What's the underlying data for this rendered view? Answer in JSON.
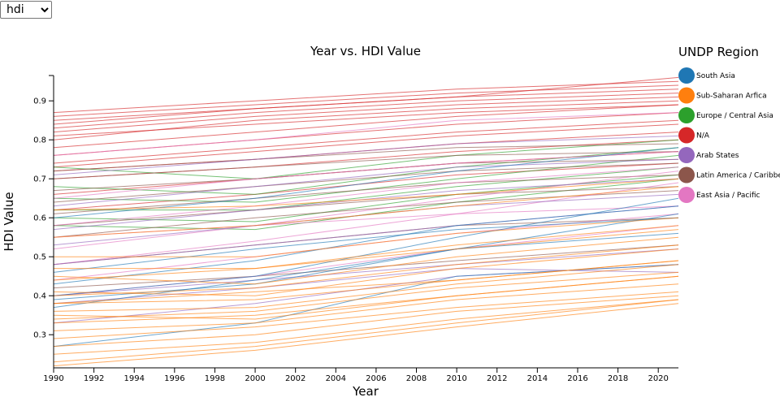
{
  "selector": {
    "selected": "hdi"
  },
  "chart_data": {
    "type": "line",
    "title": "Year vs. HDI Value",
    "xlabel": "Year",
    "ylabel": "HDI Value",
    "xlim": [
      1990,
      2021
    ],
    "ylim": [
      0.215,
      0.965
    ],
    "x_ticks": [
      "1990",
      "1992",
      "1994",
      "1996",
      "1998",
      "2000",
      "2002",
      "2004",
      "2006",
      "2008",
      "2010",
      "2012",
      "2014",
      "2016",
      "2018",
      "2020"
    ],
    "y_ticks": [
      "0.3",
      "0.4",
      "0.5",
      "0.6",
      "0.7",
      "0.8",
      "0.9"
    ],
    "grid": false,
    "legend": {
      "title": "UNDP Region",
      "placement": "right",
      "entries": [
        {
          "name": "South Asia",
          "color": "#1f77b4"
        },
        {
          "name": "Sub-Saharan Arfica",
          "color": "#ff7f0e"
        },
        {
          "name": "Europe / Central Asia",
          "color": "#2ca02c"
        },
        {
          "name": "N/A",
          "color": "#d62728"
        },
        {
          "name": "Arab States",
          "color": "#9467bd"
        },
        {
          "name": "Latin America / Caribbean",
          "color": "#8c564b"
        },
        {
          "name": "East Asia / Pacific",
          "color": "#e377c2"
        }
      ]
    },
    "x": [
      1990,
      2000,
      2010,
      2021
    ],
    "series": [
      {
        "region": "N/A",
        "values": [
          0.87,
          0.9,
          0.93,
          0.95
        ]
      },
      {
        "region": "N/A",
        "values": [
          0.86,
          0.89,
          0.92,
          0.94
        ]
      },
      {
        "region": "N/A",
        "values": [
          0.85,
          0.88,
          0.91,
          0.93
        ]
      },
      {
        "region": "N/A",
        "values": [
          0.83,
          0.87,
          0.9,
          0.92
        ]
      },
      {
        "region": "N/A",
        "values": [
          0.82,
          0.86,
          0.89,
          0.91
        ]
      },
      {
        "region": "N/A",
        "values": [
          0.8,
          0.85,
          0.88,
          0.9
        ]
      },
      {
        "region": "N/A",
        "values": [
          0.78,
          0.82,
          0.86,
          0.89
        ]
      },
      {
        "region": "N/A",
        "values": [
          0.76,
          0.8,
          0.84,
          0.87
        ]
      },
      {
        "region": "N/A",
        "values": [
          0.74,
          0.78,
          0.82,
          0.85
        ]
      },
      {
        "region": "N/A",
        "values": [
          0.73,
          0.77,
          0.81,
          0.84
        ]
      },
      {
        "region": "N/A",
        "values": [
          0.72,
          0.75,
          0.79,
          0.82
        ]
      },
      {
        "region": "N/A",
        "values": [
          0.7,
          0.73,
          0.77,
          0.8
        ]
      },
      {
        "region": "N/A",
        "values": [
          0.84,
          0.88,
          0.91,
          0.96
        ]
      },
      {
        "region": "N/A",
        "values": [
          0.81,
          0.84,
          0.87,
          0.89
        ]
      },
      {
        "region": "N/A",
        "values": [
          0.66,
          0.7,
          0.74,
          0.77
        ]
      },
      {
        "region": "N/A",
        "values": [
          0.62,
          0.66,
          0.71,
          0.74
        ]
      },
      {
        "region": "Europe / Central Asia",
        "values": [
          0.73,
          0.7,
          0.76,
          0.8
        ]
      },
      {
        "region": "Europe / Central Asia",
        "values": [
          0.68,
          0.66,
          0.73,
          0.78
        ]
      },
      {
        "region": "Europe / Central Asia",
        "values": [
          0.65,
          0.64,
          0.7,
          0.76
        ]
      },
      {
        "region": "Europe / Central Asia",
        "values": [
          0.62,
          0.62,
          0.68,
          0.73
        ]
      },
      {
        "region": "Europe / Central Asia",
        "values": [
          0.6,
          0.59,
          0.66,
          0.71
        ]
      },
      {
        "region": "Europe / Central Asia",
        "values": [
          0.58,
          0.57,
          0.64,
          0.7
        ]
      },
      {
        "region": "Latin America / Caribbean",
        "values": [
          0.72,
          0.75,
          0.78,
          0.79
        ]
      },
      {
        "region": "Latin America / Caribbean",
        "values": [
          0.7,
          0.73,
          0.76,
          0.77
        ]
      },
      {
        "region": "Latin America / Caribbean",
        "values": [
          0.67,
          0.7,
          0.74,
          0.75
        ]
      },
      {
        "region": "Latin America / Caribbean",
        "values": [
          0.64,
          0.68,
          0.72,
          0.74
        ]
      },
      {
        "region": "Latin America / Caribbean",
        "values": [
          0.61,
          0.65,
          0.69,
          0.71
        ]
      },
      {
        "region": "Latin America / Caribbean",
        "values": [
          0.58,
          0.62,
          0.66,
          0.68
        ]
      },
      {
        "region": "Latin America / Caribbean",
        "values": [
          0.55,
          0.6,
          0.64,
          0.67
        ]
      },
      {
        "region": "Latin America / Caribbean",
        "values": [
          0.48,
          0.53,
          0.58,
          0.6
        ]
      },
      {
        "region": "Latin America / Caribbean",
        "values": [
          0.42,
          0.45,
          0.49,
          0.53
        ]
      },
      {
        "region": "East Asia / Pacific",
        "values": [
          0.76,
          0.8,
          0.85,
          0.87
        ]
      },
      {
        "region": "East Asia / Pacific",
        "values": [
          0.65,
          0.7,
          0.74,
          0.77
        ]
      },
      {
        "region": "East Asia / Pacific",
        "values": [
          0.58,
          0.63,
          0.69,
          0.73
        ]
      },
      {
        "region": "East Asia / Pacific",
        "values": [
          0.52,
          0.58,
          0.65,
          0.72
        ]
      },
      {
        "region": "East Asia / Pacific",
        "values": [
          0.48,
          0.54,
          0.61,
          0.69
        ]
      },
      {
        "region": "East Asia / Pacific",
        "values": [
          0.44,
          0.5,
          0.56,
          0.61
        ]
      },
      {
        "region": "East Asia / Pacific",
        "values": [
          0.4,
          0.45,
          0.52,
          0.58
        ]
      },
      {
        "region": "East Asia / Pacific",
        "values": [
          0.55,
          0.58,
          0.61,
          0.63
        ]
      },
      {
        "region": "Arab States",
        "values": [
          0.71,
          0.75,
          0.79,
          0.81
        ]
      },
      {
        "region": "Arab States",
        "values": [
          0.63,
          0.68,
          0.73,
          0.75
        ]
      },
      {
        "region": "Arab States",
        "values": [
          0.57,
          0.62,
          0.67,
          0.7
        ]
      },
      {
        "region": "Arab States",
        "values": [
          0.53,
          0.58,
          0.63,
          0.66
        ]
      },
      {
        "region": "Arab States",
        "values": [
          0.48,
          0.53,
          0.58,
          0.63
        ]
      },
      {
        "region": "Arab States",
        "values": [
          0.4,
          0.44,
          0.48,
          0.52
        ]
      },
      {
        "region": "Arab States",
        "values": [
          0.38,
          0.42,
          0.47,
          0.46
        ]
      },
      {
        "region": "Arab States",
        "values": [
          0.33,
          0.38,
          0.45,
          0.48
        ]
      },
      {
        "region": "South Asia",
        "values": [
          0.43,
          0.49,
          0.58,
          0.63
        ]
      },
      {
        "region": "South Asia",
        "values": [
          0.4,
          0.45,
          0.55,
          0.65
        ]
      },
      {
        "region": "South Asia",
        "values": [
          0.39,
          0.43,
          0.52,
          0.56
        ]
      },
      {
        "region": "South Asia",
        "values": [
          0.37,
          0.44,
          0.52,
          0.61
        ]
      },
      {
        "region": "South Asia",
        "values": [
          0.27,
          0.33,
          0.45,
          0.48
        ]
      },
      {
        "region": "South Asia",
        "values": [
          0.46,
          0.52,
          0.57,
          0.6
        ]
      },
      {
        "region": "South Asia",
        "values": [
          0.6,
          0.65,
          0.72,
          0.78
        ]
      },
      {
        "region": "Sub-Saharan Arfica",
        "values": [
          0.62,
          0.63,
          0.66,
          0.7
        ]
      },
      {
        "region": "Sub-Saharan Arfica",
        "values": [
          0.55,
          0.58,
          0.63,
          0.68
        ]
      },
      {
        "region": "Sub-Saharan Arfica",
        "values": [
          0.5,
          0.5,
          0.56,
          0.6
        ]
      },
      {
        "region": "Sub-Saharan Arfica",
        "values": [
          0.47,
          0.47,
          0.52,
          0.57
        ]
      },
      {
        "region": "Sub-Saharan Arfica",
        "values": [
          0.45,
          0.43,
          0.5,
          0.55
        ]
      },
      {
        "region": "Sub-Saharan Arfica",
        "values": [
          0.41,
          0.4,
          0.47,
          0.52
        ]
      },
      {
        "region": "Sub-Saharan Arfica",
        "values": [
          0.4,
          0.42,
          0.48,
          0.53
        ]
      },
      {
        "region": "Sub-Saharan Arfica",
        "values": [
          0.38,
          0.39,
          0.44,
          0.49
        ]
      },
      {
        "region": "Sub-Saharan Arfica",
        "values": [
          0.36,
          0.37,
          0.43,
          0.48
        ]
      },
      {
        "region": "Sub-Saharan Arfica",
        "values": [
          0.34,
          0.36,
          0.42,
          0.46
        ]
      },
      {
        "region": "Sub-Saharan Arfica",
        "values": [
          0.33,
          0.35,
          0.4,
          0.45
        ]
      },
      {
        "region": "Sub-Saharan Arfica",
        "values": [
          0.31,
          0.33,
          0.39,
          0.43
        ]
      },
      {
        "region": "Sub-Saharan Arfica",
        "values": [
          0.29,
          0.32,
          0.37,
          0.41
        ]
      },
      {
        "region": "Sub-Saharan Arfica",
        "values": [
          0.27,
          0.3,
          0.36,
          0.4
        ]
      },
      {
        "region": "Sub-Saharan Arfica",
        "values": [
          0.25,
          0.28,
          0.34,
          0.39
        ]
      },
      {
        "region": "Sub-Saharan Arfica",
        "values": [
          0.23,
          0.27,
          0.33,
          0.39
        ]
      },
      {
        "region": "Sub-Saharan Arfica",
        "values": [
          0.22,
          0.26,
          0.32,
          0.38
        ]
      },
      {
        "region": "Sub-Saharan Arfica",
        "values": [
          0.38,
          0.41,
          0.44,
          0.49
        ]
      },
      {
        "region": "Sub-Saharan Arfica",
        "values": [
          0.44,
          0.47,
          0.53,
          0.58
        ]
      },
      {
        "region": "Sub-Saharan Arfica",
        "values": [
          0.35,
          0.34,
          0.4,
          0.45
        ]
      }
    ]
  }
}
